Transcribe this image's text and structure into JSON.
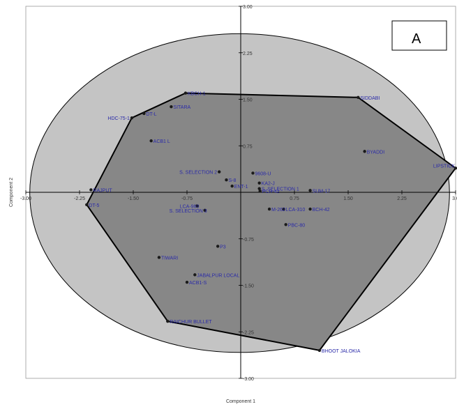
{
  "chart_data": {
    "type": "scatter",
    "title": "",
    "panel_label": "A",
    "xlabel": "Component 1",
    "ylabel": "Component 2",
    "xlim": [
      -3.0,
      3.0
    ],
    "ylim": [
      -3.0,
      3.0
    ],
    "x_ticks": [
      "-3.00",
      "-2.25",
      "-1.50",
      "-0.75",
      "0.75",
      "1.50",
      "2.25",
      "3.0"
    ],
    "x_tick_values": [
      -3.0,
      -2.25,
      -1.5,
      -0.75,
      0.75,
      1.5,
      2.25,
      3.0
    ],
    "y_ticks": [
      "3.00",
      "2.25",
      "1.50",
      "0.75",
      "-0.75",
      "-1.50",
      "-2.25",
      "-3.00"
    ],
    "y_tick_values": [
      3.0,
      2.25,
      1.5,
      0.75,
      -0.75,
      -1.5,
      -2.25,
      -3.0
    ],
    "grid": false,
    "colors": {
      "ellipse_fill": "#c4c4c4",
      "hull_fill": "#878787",
      "hull_stroke": "#000000",
      "label": "#2a2aa8",
      "point": "#1a1a1a",
      "axis": "#000000"
    },
    "points": [
      {
        "label": "RAJPUT",
        "x": -2.09,
        "y": 0.04
      },
      {
        "label": "DT-5",
        "x": -2.15,
        "y": -0.2
      },
      {
        "label": "HDC-75-1",
        "x": -1.52,
        "y": 1.2
      },
      {
        "label": "DT-L",
        "x": -1.35,
        "y": 1.27
      },
      {
        "label": "SITARA",
        "x": -0.97,
        "y": 1.38
      },
      {
        "label": "KBCH-1",
        "x": -0.77,
        "y": 1.6
      },
      {
        "label": "ACB1 L",
        "x": -1.25,
        "y": 0.83
      },
      {
        "label": "S. SELECTION 2",
        "x": -0.3,
        "y": 0.33
      },
      {
        "label": "S-8",
        "x": -0.2,
        "y": 0.2
      },
      {
        "label": "ENT-1",
        "x": -0.12,
        "y": 0.1
      },
      {
        "label": "9608-U",
        "x": 0.17,
        "y": 0.31
      },
      {
        "label": "KA2-J",
        "x": 0.26,
        "y": 0.15
      },
      {
        "label": "S. SELECTION 1",
        "x": 0.26,
        "y": 0.06
      },
      {
        "label": "PCH-42",
        "x": 0.27,
        "y": 0.02
      },
      {
        "label": "SUM-17",
        "x": 0.97,
        "y": 0.03
      },
      {
        "label": "M-262",
        "x": 0.4,
        "y": -0.27
      },
      {
        "label": "LCA-310",
        "x": 0.6,
        "y": -0.27
      },
      {
        "label": "BCH-42",
        "x": 0.97,
        "y": -0.27
      },
      {
        "label": "PBC-80",
        "x": 0.63,
        "y": -0.52
      },
      {
        "label": "LCA-960",
        "x": -0.61,
        "y": -0.22
      },
      {
        "label": "S. SELECTION 3",
        "x": -0.5,
        "y": -0.29
      },
      {
        "label": "P3",
        "x": -0.32,
        "y": -0.87
      },
      {
        "label": "TIWARI",
        "x": -1.14,
        "y": -1.05
      },
      {
        "label": "JABALPUR LOCAL",
        "x": -0.64,
        "y": -1.33
      },
      {
        "label": "ACB1-S",
        "x": -0.75,
        "y": -1.45
      },
      {
        "label": "RAICHUR BULLET",
        "x": -1.02,
        "y": -2.08
      },
      {
        "label": "BHOOT JALOKIA",
        "x": 1.1,
        "y": -2.55
      },
      {
        "label": "SIDDABI",
        "x": 1.64,
        "y": 1.53
      },
      {
        "label": "BYADDI",
        "x": 1.73,
        "y": 0.66
      },
      {
        "label": "LIPSTICK",
        "x": 3.0,
        "y": 0.39
      }
    ],
    "ellipse": {
      "cx": -0.015,
      "cy": -0.012,
      "rx": 2.93,
      "ry": 2.57
    },
    "hull": [
      {
        "x": -2.15,
        "y": -0.2
      },
      {
        "x": -1.52,
        "y": 1.2
      },
      {
        "x": -0.77,
        "y": 1.6
      },
      {
        "x": 1.64,
        "y": 1.53
      },
      {
        "x": 3.0,
        "y": 0.39
      },
      {
        "x": 1.1,
        "y": -2.55
      },
      {
        "x": -1.02,
        "y": -2.08
      }
    ]
  }
}
